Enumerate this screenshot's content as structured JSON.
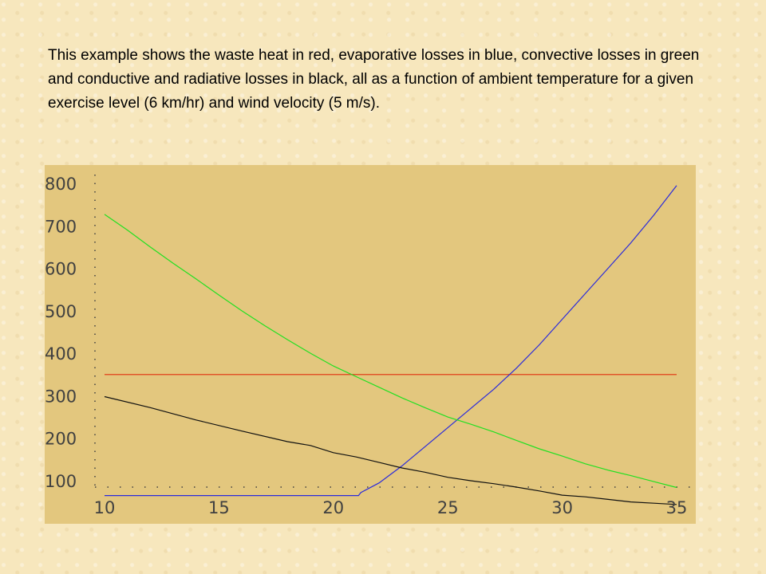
{
  "caption": "This example shows the waste heat in red, evaporative losses in blue, convective losses in green and conductive and radiative losses in black, all as a function of ambient temperature for a given exercise level (6 km/hr) and wind velocity (5 m/s).",
  "colors": {
    "plot_background": "#e3c77e",
    "waste_heat": "#e0300f",
    "evaporative": "#2a2adc",
    "convective": "#22e022",
    "conductive_radiative": "#101010",
    "axis_dots": "#404040"
  },
  "chart_data": {
    "type": "line",
    "title": "",
    "xlabel": "",
    "ylabel": "",
    "xlim": [
      10,
      35
    ],
    "ylim": [
      50,
      830
    ],
    "x_ticks": [
      "10",
      "15",
      "20",
      "25",
      "30",
      "35"
    ],
    "y_ticks": [
      "100",
      "200",
      "300",
      "400",
      "500",
      "600",
      "700",
      "800"
    ],
    "grid": false,
    "legend": "none",
    "series": [
      {
        "color_key": "waste_heat",
        "points": [
          [
            10,
            350
          ],
          [
            35,
            350
          ]
        ]
      },
      {
        "color_key": "evaporative",
        "points": [
          [
            10,
            65
          ],
          [
            13,
            65
          ],
          [
            16,
            65
          ],
          [
            19,
            65
          ],
          [
            21.1,
            65
          ],
          [
            21.2,
            72
          ],
          [
            22,
            95
          ],
          [
            23,
            135
          ],
          [
            24,
            180
          ],
          [
            25,
            225
          ],
          [
            26,
            270
          ],
          [
            27,
            315
          ],
          [
            28,
            365
          ],
          [
            29,
            420
          ],
          [
            30,
            480
          ],
          [
            31,
            540
          ],
          [
            32,
            600
          ],
          [
            33,
            660
          ],
          [
            34,
            725
          ],
          [
            35,
            795
          ]
        ]
      },
      {
        "color_key": "convective",
        "points": [
          [
            10,
            727
          ],
          [
            11,
            690
          ],
          [
            12,
            650
          ],
          [
            13,
            612
          ],
          [
            14,
            575
          ],
          [
            15,
            537
          ],
          [
            16,
            500
          ],
          [
            17,
            465
          ],
          [
            18,
            432
          ],
          [
            19,
            400
          ],
          [
            20,
            370
          ],
          [
            21,
            345
          ],
          [
            22,
            320
          ],
          [
            23,
            295
          ],
          [
            24,
            272
          ],
          [
            25,
            250
          ],
          [
            26,
            233
          ],
          [
            27,
            215
          ],
          [
            28,
            195
          ],
          [
            29,
            175
          ],
          [
            30,
            158
          ],
          [
            31,
            140
          ],
          [
            32,
            125
          ],
          [
            33,
            112
          ],
          [
            34,
            98
          ],
          [
            35,
            84
          ]
        ]
      },
      {
        "color_key": "conductive_radiative",
        "points": [
          [
            10,
            298
          ],
          [
            12,
            272
          ],
          [
            14,
            243
          ],
          [
            16,
            217
          ],
          [
            18,
            192
          ],
          [
            19,
            183
          ],
          [
            20,
            166
          ],
          [
            21,
            156
          ],
          [
            22,
            143
          ],
          [
            23,
            130
          ],
          [
            24,
            120
          ],
          [
            25,
            108
          ],
          [
            26,
            100
          ],
          [
            27,
            93
          ],
          [
            28,
            85
          ],
          [
            29,
            76
          ],
          [
            30,
            66
          ],
          [
            31,
            62
          ],
          [
            32,
            56
          ],
          [
            33,
            50
          ],
          [
            34,
            47
          ],
          [
            35,
            44
          ]
        ]
      }
    ]
  }
}
